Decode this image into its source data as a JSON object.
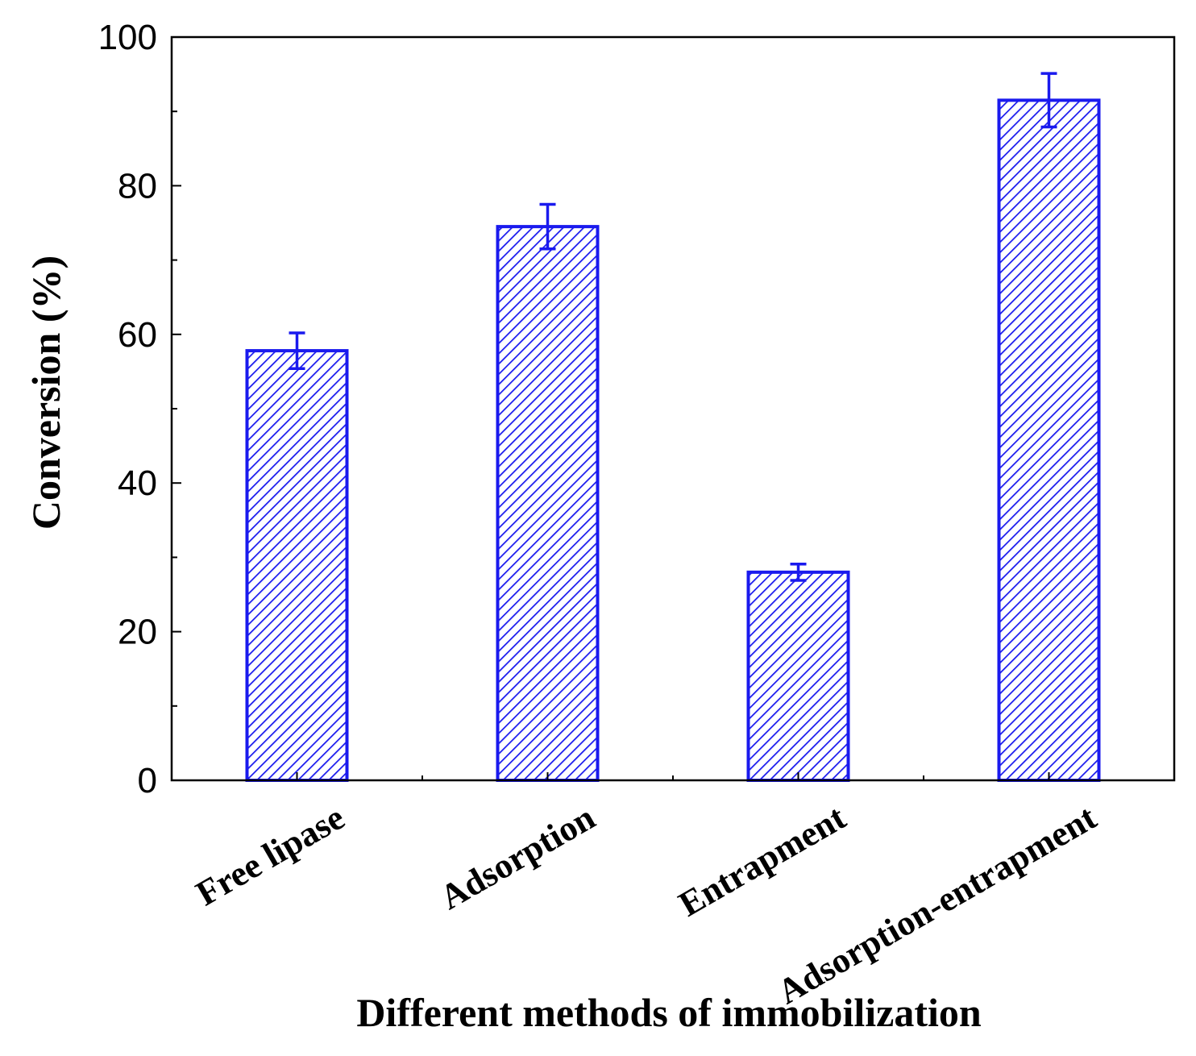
{
  "chart_data": {
    "type": "bar",
    "title": "",
    "xlabel": "Different methods of immobilization",
    "ylabel": "Conversion (%)",
    "categories": [
      "Free lipase",
      "Adsorption",
      "Entrapment",
      "Adsorption-entrapment"
    ],
    "values": [
      57.8,
      74.5,
      28.0,
      91.5
    ],
    "errors": [
      2.4,
      3.0,
      1.1,
      3.6
    ],
    "ylim": [
      0,
      100
    ],
    "yticks": [
      0,
      20,
      40,
      60,
      80,
      100
    ],
    "grid": false,
    "bar_color": "#1a1aee",
    "bar_pattern": "diagonal-hatch"
  }
}
